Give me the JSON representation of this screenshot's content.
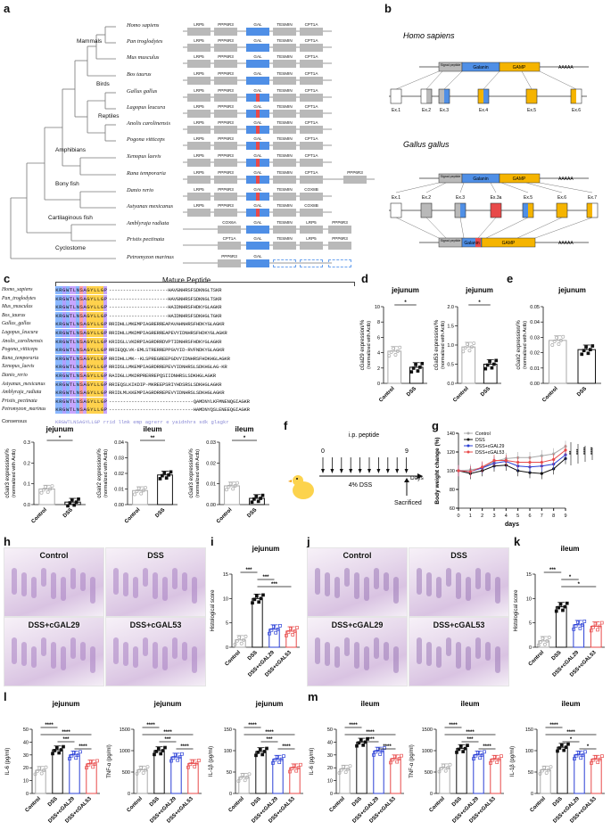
{
  "panels": {
    "a": "a",
    "b": "b",
    "c": "c",
    "d": "d",
    "e": "e",
    "f": "f",
    "g": "g",
    "h": "h",
    "i": "i",
    "j": "j",
    "k": "k",
    "l": "l",
    "m": "m"
  },
  "panel_a": {
    "clades": [
      "Mammals",
      "Birds",
      "Reptiles",
      "Amphibians",
      "Bony fish",
      "Cartilaginous fish",
      "Cyclostome"
    ],
    "species": [
      "Homo sapiens",
      "Pan troglodytes",
      "Mus musculus",
      "Bos taurus",
      "Gallus gallus",
      "Lagopus leucura",
      "Anolis carolinensis",
      "Pogona vitticeps",
      "Xenopus laevis",
      "Rana temporaria",
      "Danio rerio",
      "Astyanax mexicanus",
      "Amblyraja radiata",
      "Pristis pectinata",
      "Petromyzon marinus"
    ],
    "gene_rows": [
      [
        "LRP5",
        "PPP6R3",
        "GAL",
        "TESMIN",
        "CPT1A"
      ],
      [
        "LRP5",
        "PPP6R3",
        "GAL",
        "TESMIN",
        "CPT1A"
      ],
      [
        "LRP5",
        "PPP6R3",
        "GAL",
        "TESMIN",
        "CPT1A"
      ],
      [
        "LRP5",
        "PPP6R3",
        "GAL",
        "TESMIN",
        "CPT1A"
      ],
      [
        "LRP5",
        "PPP6R3",
        "GAL",
        "TESMIN",
        "CPT1A"
      ],
      [
        "LRP5",
        "PPP6R3",
        "GAL",
        "TESMIN",
        "CPT1A"
      ],
      [
        "LRP5",
        "PPP6R3",
        "GAL",
        "TESMIN",
        "CPT1A"
      ],
      [
        "LRP5",
        "PPP6R3",
        "GAL",
        "TESMIN",
        "CPT1A"
      ],
      [
        "LRP5",
        "PPP6R3",
        "GAL",
        "TESMIN",
        "CPT1A"
      ],
      [
        "LRP5",
        "PPP6R3",
        "GAL",
        "TESMIN",
        "CPT1A",
        "PPP6R3"
      ],
      [
        "LRP5",
        "PPP6R3",
        "GAL",
        "TESMIN",
        "COX8B"
      ],
      [
        "LRP5",
        "PPP6R3",
        "GAL",
        "TESMIN",
        "COX8B"
      ],
      [
        "COX6A",
        "GAL",
        "TESMIN",
        "LRP5",
        "PPP6R3"
      ],
      [
        "CPT1A",
        "GAL",
        "TESMIN",
        "LRP5",
        "PPP6R3"
      ],
      [
        "PPP6R3",
        "GAL"
      ]
    ]
  },
  "panel_b": {
    "homo": "Homo sapiens",
    "gallus": "Gallus gallus",
    "signal": "Signal peptide",
    "galanin": "Galanin",
    "gamp": "GAMP",
    "polyA": "AAAAA",
    "homo_exons": [
      "Ex.1",
      "Ex.2",
      "Ex.3",
      "Ex.4",
      "Ex.5",
      "Ex.6"
    ],
    "gallus_exons": [
      "Ex.1",
      "Ex.2",
      "Ex.3",
      "Ex.3a",
      "Ex.5",
      "Ex.6",
      "Ex.7"
    ]
  },
  "panel_c": {
    "title": "Mature Peptide",
    "consensus_label": "Consensus",
    "species": [
      "Homo_sapiens",
      "Pan_troglodytes",
      "Mus_musculus",
      "Bos_taurus",
      "Gallus_gallus",
      "Lagopus_leucura",
      "Anolis_carolinensis",
      "Pogona_vitticeps",
      "Rana_temporaria",
      "Xenopus_laevis",
      "Danio_rerio",
      "Astyanax_mexicanus",
      "Amblyraja_radiata",
      "Pristis_pectinata",
      "Petromyzon_marinus"
    ],
    "head": [
      "KRGWTLNSAGYLLGP",
      "KRGWTLNSAGYLLGP",
      "KRGWTLNSAGYLLGP",
      "KRGWTLNSAGYLLGP",
      "KRGWTLNSAGYLLGP",
      "KRGWTLNSAGYLLGP",
      "KRGWTLNSAGYLLGP",
      "KRGWTLNSAGYLLGP",
      "KRGWTLNSAGYLLGP",
      "KRGWTLNSAGYLLGP",
      "KRGWTLNSAGYLLGP",
      "KRGWTLNSAGYLLGP",
      "KRGWTLNSAGYLLGP",
      "KRGWTLNSAGYLLGP",
      "KRGWTLNSAGYLLGP"
    ],
    "tail": [
      "---------------------HAVGNHRSFSDKNGLTSKR",
      "---------------------HAVGNHRSFSDKNGLTSKR",
      "---------------------HAIDNHRSFHDKYGLAGKR",
      "---------------------HAIDNHRSFSDKHGLTGKR",
      "RRIDHLLMKEMPIAGRERREAPAVAHNHRSFHDKYGLAGKR",
      "RRIDHLLMKDMPIAGRERREAPEVYIDNHRSFHDKYGLAGKR",
      "KRIDSLLVKDRPIAGRDRRDVPTIDNHRSFHDKYGLAGKR",
      "RRIEQQLVK-EMLSTRERREPPGVYID-RVFNDKYGLAGKR",
      "RRIDHLLMK--KLSPREGREEPGDVYIDNHRSFHDKHGLAGKR",
      "RRIDSLLMKEMPIAGRDRREPEVYIDNHRSLSDKHGLAG-KR",
      "RAIDGLLMKDRPRERREPQSIIDNHRSLSDKHGLAGKR",
      "RRIEQSLKIKDIP-MKREEPSRIYHDSRSLSDKHGLAGKR",
      "RRIDLMLKKEMPIAGRDRREPEVYIDNHRSLSDKHGLAGKR",
      "------------------------------QAMDNYLKFMNENQGIAGKR",
      "------------------------------HAMDNYQSLENEEQGIAGKR"
    ],
    "consensus": "KRGWTLNSAGYLLGP rrid llmk emp agrerr e yaidnhrs sdk glagkr"
  },
  "panel_d": {
    "left": {
      "title": "jejunum",
      "ylabel": "cGal29 expression/%",
      "ylabel2": "(normalized with Actb)",
      "yticks": [
        "0",
        "2",
        "4",
        "6",
        "8",
        "10"
      ],
      "groups": [
        "Control",
        "DSS"
      ],
      "sig": "*"
    },
    "right": {
      "title": "jejunum",
      "ylabel": "cGal53 expression/%",
      "ylabel2": "(normalized with Actb)",
      "yticks": [
        "0.0",
        "0.5",
        "1.0",
        "1.5",
        "2.0"
      ],
      "groups": [
        "Control",
        "DSS"
      ],
      "sig": "*"
    }
  },
  "panel_e": {
    "title": "jejunum",
    "ylabel": "cGalr2 expression/%",
    "ylabel2": "(normalized with Actb)",
    "yticks": [
      "0.00",
      "0.01",
      "0.02",
      "0.03",
      "0.04",
      "0.05"
    ],
    "groups": [
      "Control",
      "DSS"
    ]
  },
  "panel_bottom_left": [
    {
      "title": "jejunum",
      "ylabel": "cGalr3 expression/%",
      "ylabel2": "(normalized with Actb)",
      "yticks": [
        "0.0",
        "0.1",
        "0.2",
        "0.3"
      ],
      "groups": [
        "Control",
        "DSS"
      ],
      "sig": "*"
    },
    {
      "title": "ileum",
      "ylabel": "cGalr2 expression/%",
      "ylabel2": "(normalized with Actb)",
      "yticks": [
        "0.00",
        "0.01",
        "0.02",
        "0.03",
        "0.04"
      ],
      "groups": [
        "Control",
        "DSS"
      ],
      "sig": "**"
    },
    {
      "title": "ileum",
      "ylabel": "cGalr3 expression/%",
      "ylabel2": "(normalized with Actb)",
      "yticks": [
        "0.00",
        "0.01",
        "0.02",
        "0.03"
      ],
      "groups": [
        "Control",
        "DSS"
      ],
      "sig": "*"
    }
  ],
  "panel_f": {
    "ip": "i.p. peptide",
    "dss": "4% DSS",
    "day0": "0",
    "day9": "9",
    "days": "Days",
    "sacrificed": "Sacrificed"
  },
  "panel_g": {
    "ylabel": "Body weight change (%)",
    "xlabel": "days",
    "yticks": [
      "60",
      "80",
      "100",
      "120",
      "140"
    ],
    "xticks": [
      "0",
      "1",
      "2",
      "3",
      "4",
      "5",
      "6",
      "7",
      "8",
      "9"
    ],
    "legend": [
      "Control",
      "DSS",
      "DSS+cGAL29",
      "DSS+cGAL53"
    ],
    "sig": [
      "**",
      "***",
      "****",
      "****"
    ]
  },
  "panel_h": {
    "labels": [
      "Control",
      "DSS",
      "DSS+cGAL29",
      "DSS+cGAL53"
    ]
  },
  "panel_i": {
    "title": "jejunum",
    "ylabel": "Histological score",
    "yticks": [
      "0",
      "5",
      "10",
      "15"
    ],
    "groups": [
      "Control",
      "DSS",
      "DSS+cGAL29",
      "DSS+cGAL53"
    ],
    "sig": [
      "***",
      "***",
      "***"
    ]
  },
  "panel_j": {
    "labels": [
      "Control",
      "DSS",
      "DSS+cGAL29",
      "DSS+cGAL53"
    ]
  },
  "panel_k": {
    "title": "ileum",
    "ylabel": "Histological score",
    "yticks": [
      "0",
      "5",
      "10",
      "15"
    ],
    "groups": [
      "Control",
      "DSS",
      "DSS+cGAL29",
      "DSS+cGAL53"
    ],
    "sig": [
      "***",
      "*",
      "*"
    ]
  },
  "panel_l": [
    {
      "title": "jejunum",
      "ylabel": "IL-6 (pg/ml)",
      "yticks": [
        "0",
        "10",
        "20",
        "30",
        "40",
        "50"
      ],
      "groups": [
        "Control",
        "DSS",
        "DSS+cGAL29",
        "DSS+cGAL53"
      ],
      "sig": [
        "****",
        "****",
        "***",
        "****"
      ]
    },
    {
      "title": "jejunum",
      "ylabel": "TNF-α (pg/ml)",
      "yticks": [
        "0",
        "500",
        "1000",
        "1500"
      ],
      "groups": [
        "Control",
        "DSS",
        "DSS+cGAL29",
        "DSS+cGAL53"
      ],
      "sig": [
        "****",
        "****",
        "***",
        "****"
      ]
    },
    {
      "title": "jejunum",
      "ylabel": "IL-1β (pg/ml)",
      "yticks": [
        "0",
        "50",
        "100",
        "150"
      ],
      "groups": [
        "Control",
        "DSS",
        "DSS+cGAL29",
        "DSS+cGAL53"
      ],
      "sig": [
        "****",
        "****",
        "***",
        "****"
      ]
    }
  ],
  "panel_m": [
    {
      "title": "ileum",
      "ylabel": "IL-6 (pg/ml)",
      "yticks": [
        "0",
        "10",
        "20",
        "30",
        "40",
        "50"
      ],
      "groups": [
        "Control",
        "DSS",
        "DSS+cGAL29",
        "DSS+cGAL53"
      ],
      "sig": [
        "****",
        "****",
        "****",
        "****"
      ]
    },
    {
      "title": "ileum",
      "ylabel": "TNF-α (pg/ml)",
      "yticks": [
        "0",
        "500",
        "1000",
        "1500"
      ],
      "groups": [
        "Control",
        "DSS",
        "DSS+cGAL29",
        "DSS+cGAL53"
      ],
      "sig": [
        "****",
        "****",
        "***",
        "****"
      ]
    },
    {
      "title": "ileum",
      "ylabel": "IL-1β (pg/ml)",
      "yticks": [
        "0",
        "50",
        "100",
        "150"
      ],
      "groups": [
        "Control",
        "DSS",
        "DSS+cGAL29",
        "DSS+cGAL53"
      ],
      "sig": [
        "****",
        "****",
        "*",
        "*"
      ]
    }
  ],
  "colors": {
    "control": "#aaaaaa",
    "dss": "#111111",
    "gal29": "#2a3fd6",
    "gal53": "#e84a4a",
    "galanin": "#4f8fe6",
    "gamp": "#f5b400"
  },
  "chart_data": [
    {
      "type": "bar",
      "id": "d-left",
      "categories": [
        "Control",
        "DSS"
      ],
      "values": [
        4.2,
        2.1
      ],
      "ylim": [
        0,
        10
      ]
    },
    {
      "type": "bar",
      "id": "d-right",
      "categories": [
        "Control",
        "DSS"
      ],
      "values": [
        0.95,
        0.5
      ],
      "ylim": [
        0,
        2
      ]
    },
    {
      "type": "bar",
      "id": "e",
      "categories": [
        "Control",
        "DSS"
      ],
      "values": [
        0.028,
        0.022
      ],
      "ylim": [
        0,
        0.05
      ]
    },
    {
      "type": "bar",
      "id": "bl-1",
      "categories": [
        "Control",
        "DSS"
      ],
      "values": [
        0.075,
        0.012
      ],
      "ylim": [
        0,
        0.3
      ]
    },
    {
      "type": "bar",
      "id": "bl-2",
      "categories": [
        "Control",
        "DSS"
      ],
      "values": [
        0.009,
        0.019
      ],
      "ylim": [
        0,
        0.04
      ]
    },
    {
      "type": "bar",
      "id": "bl-3",
      "categories": [
        "Control",
        "DSS"
      ],
      "values": [
        0.009,
        0.003
      ],
      "ylim": [
        0,
        0.03
      ]
    },
    {
      "type": "bar",
      "id": "i",
      "categories": [
        "Control",
        "DSS",
        "DSS+cGAL29",
        "DSS+cGAL53"
      ],
      "values": [
        1.5,
        10,
        3.7,
        3.3
      ],
      "ylim": [
        0,
        15
      ]
    },
    {
      "type": "bar",
      "id": "k",
      "categories": [
        "Control",
        "DSS",
        "DSS+cGAL29",
        "DSS+cGAL53"
      ],
      "values": [
        1.3,
        8.3,
        4.6,
        4.3
      ],
      "ylim": [
        0,
        15
      ]
    },
    {
      "type": "bar",
      "id": "l-1",
      "categories": [
        "Control",
        "DSS",
        "DSS+cGAL29",
        "DSS+cGAL53"
      ],
      "values": [
        18,
        34,
        30,
        23
      ],
      "ylim": [
        0,
        50
      ]
    },
    {
      "type": "bar",
      "id": "l-2",
      "categories": [
        "Control",
        "DSS",
        "DSS+cGAL29",
        "DSS+cGAL53"
      ],
      "values": [
        550,
        1000,
        850,
        700
      ],
      "ylim": [
        0,
        1500
      ]
    },
    {
      "type": "bar",
      "id": "l-3",
      "categories": [
        "Control",
        "DSS",
        "DSS+cGAL29",
        "DSS+cGAL53"
      ],
      "values": [
        38,
        98,
        80,
        60
      ],
      "ylim": [
        0,
        150
      ]
    },
    {
      "type": "bar",
      "id": "m-1",
      "categories": [
        "Control",
        "DSS",
        "DSS+cGAL29",
        "DSS+cGAL53"
      ],
      "values": [
        19,
        40,
        33,
        27
      ],
      "ylim": [
        0,
        50
      ]
    },
    {
      "type": "bar",
      "id": "m-2",
      "categories": [
        "Control",
        "DSS",
        "DSS+cGAL29",
        "DSS+cGAL53"
      ],
      "values": [
        600,
        1050,
        900,
        800
      ],
      "ylim": [
        0,
        1500
      ]
    },
    {
      "type": "bar",
      "id": "m-3",
      "categories": [
        "Control",
        "DSS",
        "DSS+cGAL29",
        "DSS+cGAL53"
      ],
      "values": [
        55,
        108,
        90,
        80
      ],
      "ylim": [
        0,
        150
      ]
    },
    {
      "type": "line",
      "id": "g",
      "x": [
        0,
        1,
        2,
        3,
        4,
        5,
        6,
        7,
        8,
        9
      ],
      "ylim": [
        60,
        140
      ],
      "series": [
        {
          "name": "Control",
          "values": [
            100,
            101,
            103,
            110,
            113,
            114,
            114,
            116,
            118,
            126
          ]
        },
        {
          "name": "DSS",
          "values": [
            100,
            97,
            100,
            105,
            106,
            100,
            98,
            97,
            102,
            113
          ]
        },
        {
          "name": "DSS+cGAL29",
          "values": [
            100,
            99,
            103,
            108,
            110,
            105,
            104,
            105,
            107,
            117
          ]
        },
        {
          "name": "DSS+cGAL53",
          "values": [
            100,
            99,
            104,
            111,
            111,
            109,
            109,
            109,
            112,
            122
          ]
        }
      ]
    }
  ]
}
